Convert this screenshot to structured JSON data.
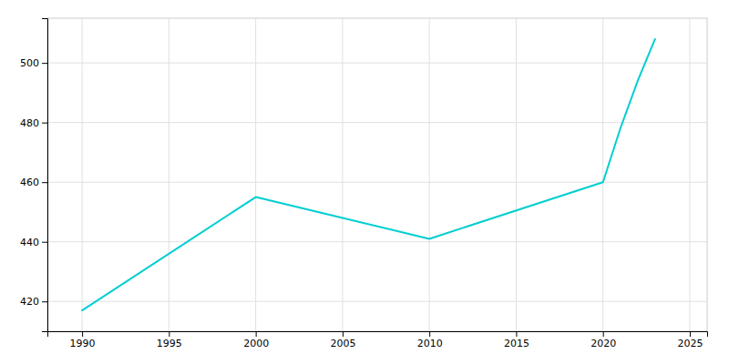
{
  "chart_data": {
    "type": "line",
    "x": [
      1990,
      2000,
      2010,
      2020,
      2021,
      2022,
      2023
    ],
    "values": [
      417,
      455,
      441,
      460,
      478,
      494,
      508
    ],
    "color": "#00CED1",
    "xlim": [
      1988,
      2026
    ],
    "ylim": [
      410,
      515
    ],
    "xticks": [
      1990,
      1995,
      2000,
      2005,
      2010,
      2015,
      2020,
      2025
    ],
    "yticks": [
      420,
      440,
      460,
      480,
      500
    ],
    "grid": true
  }
}
